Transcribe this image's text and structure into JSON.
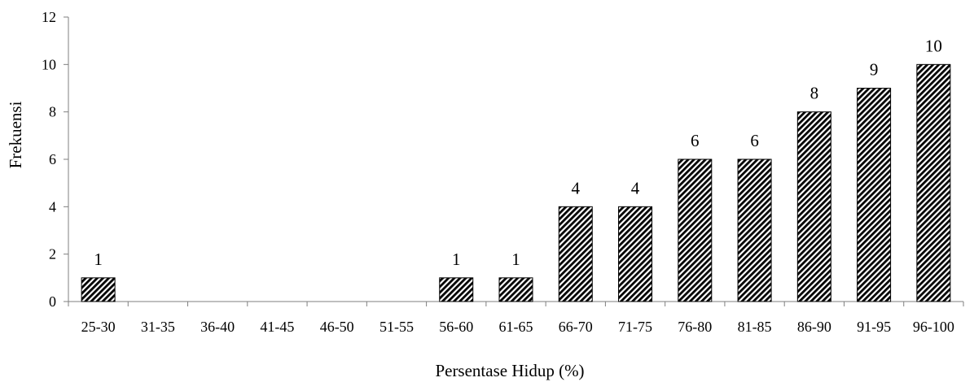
{
  "chart_data": {
    "type": "bar",
    "title": "",
    "xlabel": "Persentase Hidup (%)",
    "ylabel": "Frekuensi",
    "categories": [
      "25-30",
      "31-35",
      "36-40",
      "41-45",
      "46-50",
      "51-55",
      "56-60",
      "61-65",
      "66-70",
      "71-75",
      "76-80",
      "81-85",
      "86-90",
      "91-95",
      "96-100"
    ],
    "values": [
      1,
      0,
      0,
      0,
      0,
      0,
      1,
      1,
      4,
      4,
      6,
      6,
      8,
      9,
      10
    ],
    "data_labels": [
      "1",
      "",
      "",
      "",
      "",
      "",
      "1",
      "1",
      "4",
      "4",
      "6",
      "6",
      "8",
      "9",
      "10"
    ],
    "ylim": [
      0,
      12
    ],
    "yticks": [
      0,
      2,
      4,
      6,
      8,
      10,
      12
    ],
    "ytick_labels": [
      "0",
      "2",
      "4",
      "6",
      "8",
      "10",
      "12"
    ],
    "grid": false,
    "legend": "none",
    "bar_pattern": "diagonal-hatch",
    "colors": {
      "bar_fill": "#000000",
      "bar_background": "#ffffff",
      "axis": "#7f7f7f",
      "text": "#000000"
    }
  }
}
